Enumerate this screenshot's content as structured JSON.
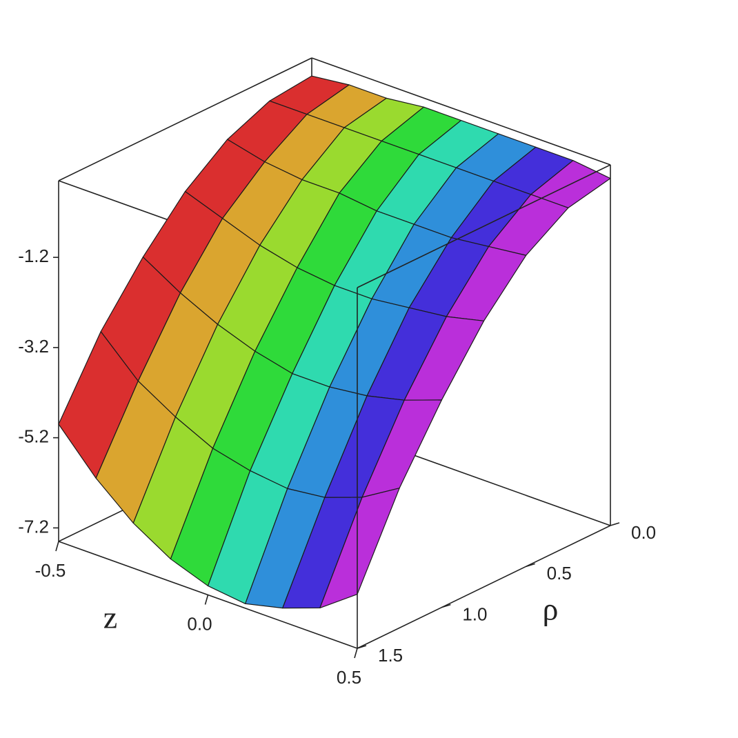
{
  "chart_data": {
    "type": "surface",
    "xlabel": "z",
    "ylabel": "ρ",
    "x": [
      -0.5,
      -0.375,
      -0.25,
      -0.125,
      0,
      0.125,
      0.25,
      0.375,
      0.5
    ],
    "y": [
      0,
      0.25,
      0.5,
      0.75,
      1.0,
      1.25,
      1.5
    ],
    "values": [
      [
        0.1,
        0.2,
        0.2,
        0.3,
        0.3,
        0.3,
        0.3,
        0.3,
        0.2
      ],
      [
        0.0,
        0.0,
        0.0,
        0.0,
        0.0,
        0.0,
        0.0,
        0.0,
        0.0
      ],
      [
        -0.4,
        -0.6,
        -0.7,
        -0.7,
        -0.8,
        -0.8,
        -0.8,
        -0.7,
        -0.6
      ],
      [
        -1.1,
        -1.4,
        -1.7,
        -1.9,
        -2.0,
        -2.0,
        -1.9,
        -1.8,
        -1.6
      ],
      [
        -2.1,
        -2.6,
        -3.0,
        -3.3,
        -3.5,
        -3.5,
        -3.4,
        -3.2,
        -2.9
      ],
      [
        -3.3,
        -4.1,
        -4.6,
        -5.0,
        -5.2,
        -5.3,
        -5.2,
        -4.9,
        -4.4
      ],
      [
        -4.9,
        -5.8,
        -6.5,
        -7.0,
        -7.3,
        -7.4,
        -7.2,
        -6.9,
        -6.3
      ]
    ],
    "xlim": [
      -0.5,
      0.5
    ],
    "ylim": [
      0,
      1.5
    ],
    "zlim": [
      -7.5,
      0.5
    ],
    "xticks": [
      -0.5,
      {
        "value": 0,
        "label": "0.0"
      },
      0.5
    ],
    "yticks": [
      {
        "value": 0,
        "label": "0.0"
      },
      0.5,
      {
        "value": 1,
        "label": "1.0"
      },
      1.5
    ],
    "zticks": [
      -1.2,
      -3.2,
      -5.2,
      -7.2
    ]
  }
}
